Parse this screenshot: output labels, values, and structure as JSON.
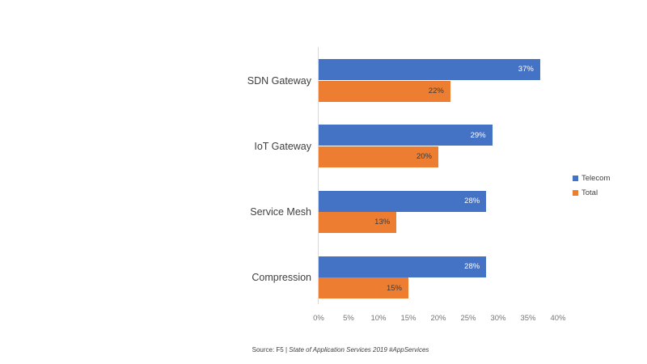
{
  "chart_data": {
    "type": "bar",
    "orientation": "horizontal",
    "title": "",
    "categories": [
      "SDN Gateway",
      "IoT Gateway",
      "Service Mesh",
      "Compression"
    ],
    "series": [
      {
        "name": "Telecom",
        "color": "#4472c4",
        "label_color": "#ffffff",
        "values": [
          37,
          29,
          28,
          28
        ]
      },
      {
        "name": "Total",
        "color": "#ed7d31",
        "label_color": "#3b3b3b",
        "values": [
          22,
          20,
          13,
          15
        ]
      }
    ],
    "x_axis": {
      "min": 0,
      "max": 40,
      "unit": "%",
      "ticks": [
        "0%",
        "5%",
        "10%",
        "15%",
        "20%",
        "25%",
        "30%",
        "35%",
        "40%"
      ]
    },
    "legend": {
      "position": "right",
      "entries": [
        "Telecom",
        "Total"
      ]
    },
    "grid": false,
    "data_labels": "inside-end"
  },
  "source": {
    "prefix": "Source: F5 | ",
    "italic": "State of Application Services 2019 #AppServices"
  },
  "colors": {
    "background": "#ffffff",
    "axis_line": "#d9d9d9",
    "tick_label": "#757575",
    "category_label": "#3f3f3f"
  }
}
